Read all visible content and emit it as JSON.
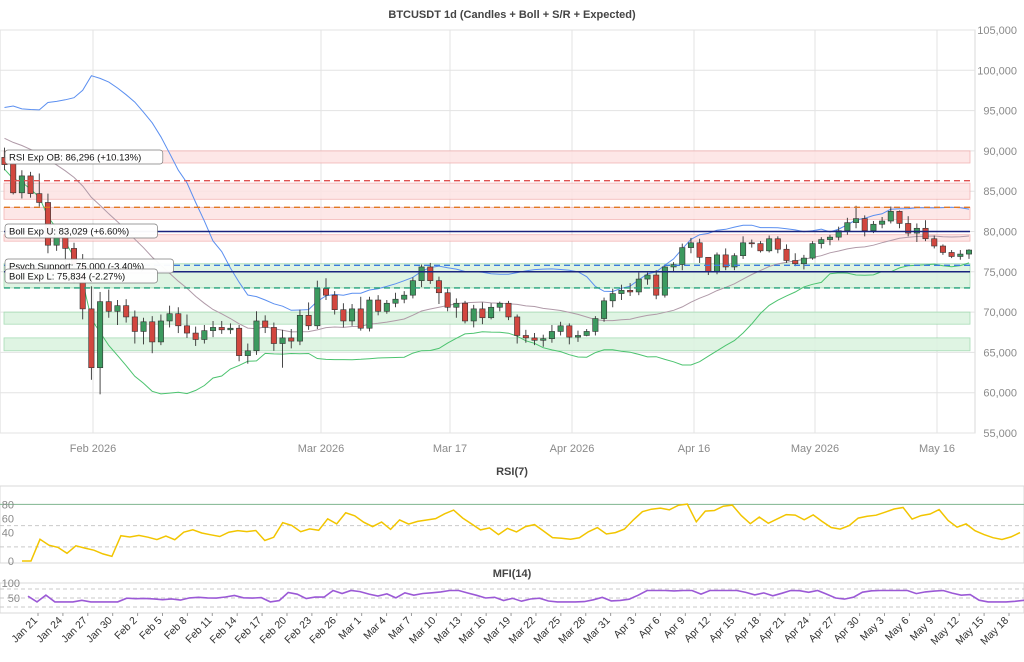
{
  "chart_data": [
    {
      "type": "candlestick",
      "title": "BTCUSDT 1d (Candles + Boll + S/R + Expected)",
      "ylim": [
        55000,
        105000
      ],
      "y_ticks": [
        "55,000",
        "60,000",
        "65,000",
        "70,000",
        "75,000",
        "80,000",
        "85,000",
        "90,000",
        "95,000",
        "100,000",
        "105,000"
      ],
      "x_tick_labels": [
        "Feb 2026",
        "Mar 2026",
        "Mar 17",
        "Apr 2026",
        "Apr 16",
        "May 2026",
        "May 16"
      ],
      "grid": true,
      "annotations": [
        {
          "text": "RSI Exp OB: 86,296 (+10.13%)",
          "value": 86296
        },
        {
          "text": "Boll Exp U: 83,029 (+6.60%)",
          "value": 83029
        },
        {
          "text": "Psych Support: 75,000 (-3.40%)",
          "value": 75000
        },
        {
          "text": "Boll Exp L: 75,834 (-2.27%)",
          "value": 75834
        }
      ],
      "horizontal_lines": [
        {
          "value": 86300,
          "style": "dashed",
          "color": "#e05050"
        },
        {
          "value": 83000,
          "style": "dashed",
          "color": "#e07820"
        },
        {
          "value": 80000,
          "style": "solid",
          "color": "#1a237e"
        },
        {
          "value": 75800,
          "style": "dashed",
          "color": "#3a7be0"
        },
        {
          "value": 75000,
          "style": "solid",
          "color": "#1a237e"
        },
        {
          "value": 73000,
          "style": "dashed",
          "color": "#22a07a"
        }
      ],
      "resistance_zones": [
        [
          88500,
          90000
        ],
        [
          84000,
          86000
        ],
        [
          81500,
          83000
        ],
        [
          78800,
          79600
        ]
      ],
      "support_zones": [
        [
          73000,
          76000
        ],
        [
          68500,
          70000
        ],
        [
          65200,
          66800
        ]
      ],
      "colors": {
        "up": "#3c9a5f",
        "down": "#d2473f",
        "upper_band": "#5b8ff0",
        "middle_band": "#b09aa8",
        "lower_band": "#4cc36f"
      },
      "candles": [
        [
          89200,
          90400,
          87600,
          88300
        ],
        [
          88400,
          89100,
          84600,
          84800
        ],
        [
          84800,
          87600,
          84100,
          86900
        ],
        [
          86900,
          87400,
          84200,
          84700
        ],
        [
          84700,
          87200,
          83100,
          83600
        ],
        [
          83600,
          84700,
          77300,
          78300
        ],
        [
          78300,
          80200,
          77600,
          79700
        ],
        [
          79700,
          80100,
          73800,
          77900
        ],
        [
          77900,
          78600,
          73600,
          75900
        ],
        [
          75900,
          77200,
          69100,
          70400
        ],
        [
          70400,
          73200,
          61600,
          63100
        ],
        [
          63100,
          72500,
          59800,
          71300
        ],
        [
          71300,
          72800,
          69300,
          70100
        ],
        [
          70100,
          71500,
          68400,
          70800
        ],
        [
          70800,
          71600,
          68700,
          69400
        ],
        [
          69400,
          70200,
          66100,
          67600
        ],
        [
          67600,
          69300,
          66000,
          68800
        ],
        [
          68800,
          69500,
          64900,
          66300
        ],
        [
          66300,
          69700,
          65900,
          68900
        ],
        [
          68900,
          70800,
          68100,
          69800
        ],
        [
          69800,
          70600,
          67400,
          68300
        ],
        [
          68300,
          69700,
          66800,
          67400
        ],
        [
          67400,
          68200,
          65800,
          66600
        ],
        [
          66600,
          68400,
          66100,
          67700
        ],
        [
          67700,
          68900,
          66900,
          68100
        ],
        [
          68100,
          68900,
          67300,
          67800
        ],
        [
          67800,
          68600,
          67300,
          68000
        ],
        [
          68000,
          68400,
          63900,
          64600
        ],
        [
          64600,
          66100,
          63600,
          65200
        ],
        [
          65200,
          70100,
          64700,
          68900
        ],
        [
          68900,
          69600,
          67400,
          68100
        ],
        [
          68100,
          68700,
          65200,
          66100
        ],
        [
          66100,
          67800,
          63100,
          66800
        ],
        [
          66800,
          67900,
          65500,
          66400
        ],
        [
          66400,
          70300,
          65900,
          69600
        ],
        [
          69600,
          71200,
          67800,
          68300
        ],
        [
          68300,
          73900,
          67900,
          72900
        ],
        [
          72900,
          74200,
          71500,
          72100
        ],
        [
          72100,
          72600,
          69700,
          70300
        ],
        [
          70300,
          71100,
          68100,
          68900
        ],
        [
          68900,
          71000,
          68300,
          70400
        ],
        [
          70400,
          71900,
          67700,
          68000
        ],
        [
          68000,
          71900,
          67600,
          71500
        ],
        [
          71500,
          72100,
          69600,
          70100
        ],
        [
          70100,
          71500,
          69800,
          71100
        ],
        [
          71100,
          72400,
          70600,
          71600
        ],
        [
          71600,
          72600,
          71100,
          72100
        ],
        [
          72100,
          74300,
          71700,
          73900
        ],
        [
          73900,
          75900,
          73100,
          75600
        ],
        [
          75600,
          76100,
          73500,
          73900
        ],
        [
          73900,
          74400,
          71000,
          72400
        ],
        [
          72400,
          72900,
          70100,
          70600
        ],
        [
          70600,
          71700,
          69300,
          71100
        ],
        [
          71100,
          71400,
          68600,
          68900
        ],
        [
          68900,
          70900,
          68100,
          70400
        ],
        [
          70400,
          71200,
          68500,
          69300
        ],
        [
          69300,
          71100,
          69100,
          70600
        ],
        [
          70600,
          71300,
          70100,
          71100
        ],
        [
          71100,
          71400,
          69000,
          69400
        ],
        [
          69400,
          69700,
          66100,
          67100
        ],
        [
          67100,
          67800,
          66200,
          66800
        ],
        [
          66800,
          67400,
          65900,
          66500
        ],
        [
          66500,
          67200,
          65700,
          66700
        ],
        [
          66700,
          68400,
          66200,
          67600
        ],
        [
          67600,
          68800,
          67100,
          68300
        ],
        [
          68300,
          68600,
          66000,
          66900
        ],
        [
          66900,
          67700,
          66300,
          67100
        ],
        [
          67100,
          67900,
          67000,
          67600
        ],
        [
          67600,
          69500,
          67100,
          69200
        ],
        [
          69200,
          71800,
          68800,
          71400
        ],
        [
          71400,
          72900,
          70600,
          72300
        ],
        [
          72300,
          73400,
          71500,
          72700
        ],
        [
          72700,
          73600,
          72000,
          72500
        ],
        [
          72500,
          74900,
          72100,
          74100
        ],
        [
          74100,
          74900,
          73400,
          74600
        ],
        [
          74600,
          75200,
          71600,
          72100
        ],
        [
          72100,
          75900,
          71800,
          75600
        ],
        [
          75600,
          76200,
          75100,
          75900
        ],
        [
          75900,
          78500,
          75200,
          78000
        ],
        [
          78000,
          79200,
          77300,
          78600
        ],
        [
          78600,
          79100,
          76100,
          76800
        ],
        [
          76800,
          76800,
          74600,
          75000
        ],
        [
          75000,
          77400,
          74700,
          77100
        ],
        [
          77100,
          77900,
          75200,
          75600
        ],
        [
          75600,
          77300,
          75200,
          77000
        ],
        [
          77000,
          79400,
          76600,
          78600
        ],
        [
          78600,
          79000,
          78000,
          78500
        ],
        [
          78500,
          78800,
          77400,
          77600
        ],
        [
          77600,
          79500,
          77400,
          79100
        ],
        [
          79100,
          79400,
          77300,
          77800
        ],
        [
          77800,
          78400,
          76100,
          76400
        ],
        [
          76400,
          77300,
          75700,
          76000
        ],
        [
          76000,
          77100,
          75300,
          76700
        ],
        [
          76700,
          78800,
          76500,
          78500
        ],
        [
          78500,
          79300,
          77900,
          79000
        ],
        [
          79000,
          79600,
          78300,
          79300
        ],
        [
          79300,
          80600,
          78900,
          80100
        ],
        [
          80100,
          81700,
          79600,
          81100
        ],
        [
          81100,
          83200,
          80400,
          81600
        ],
        [
          81600,
          82000,
          79400,
          80100
        ],
        [
          80100,
          81300,
          79800,
          80900
        ],
        [
          80900,
          81800,
          80400,
          81300
        ],
        [
          81300,
          83100,
          81000,
          82500
        ],
        [
          82500,
          82600,
          80400,
          81000
        ],
        [
          81000,
          81900,
          79400,
          79800
        ],
        [
          79800,
          81000,
          78700,
          80400
        ],
        [
          80400,
          81400,
          78800,
          79100
        ],
        [
          79100,
          79500,
          77900,
          78200
        ],
        [
          78200,
          78400,
          77100,
          77400
        ],
        [
          77400,
          77700,
          76700,
          76900
        ],
        [
          76900,
          77700,
          76500,
          77200
        ],
        [
          77200,
          77800,
          76600,
          77700
        ]
      ]
    },
    {
      "type": "line",
      "title": "RSI(7)",
      "ylim": [
        0,
        100
      ],
      "y_ticks": [
        "0",
        "40",
        "60",
        "80"
      ],
      "ref_lines": [
        80,
        50,
        20
      ],
      "color": "#f2c500"
    },
    {
      "type": "line",
      "title": "MFI(14)",
      "ylim": [
        0,
        100
      ],
      "y_ticks": [
        "50",
        "100"
      ],
      "ref_lines": [
        80,
        50,
        20
      ],
      "color": "#9b59d6",
      "x_tick_labels": [
        "Jan 21",
        "Jan 24",
        "Jan 27",
        "Jan 30",
        "Feb 2",
        "Feb 5",
        "Feb 8",
        "Feb 11",
        "Feb 14",
        "Feb 17",
        "Feb 20",
        "Feb 23",
        "Feb 26",
        "Mar 1",
        "Mar 4",
        "Mar 7",
        "Mar 10",
        "Mar 13",
        "Mar 16",
        "Mar 19",
        "Mar 22",
        "Mar 25",
        "Mar 28",
        "Mar 31",
        "Apr 3",
        "Apr 6",
        "Apr 9",
        "Apr 12",
        "Apr 15",
        "Apr 18",
        "Apr 21",
        "Apr 24",
        "Apr 27",
        "Apr 30",
        "May 3",
        "May 6",
        "May 9",
        "May 12",
        "May 15",
        "May 18"
      ]
    }
  ]
}
